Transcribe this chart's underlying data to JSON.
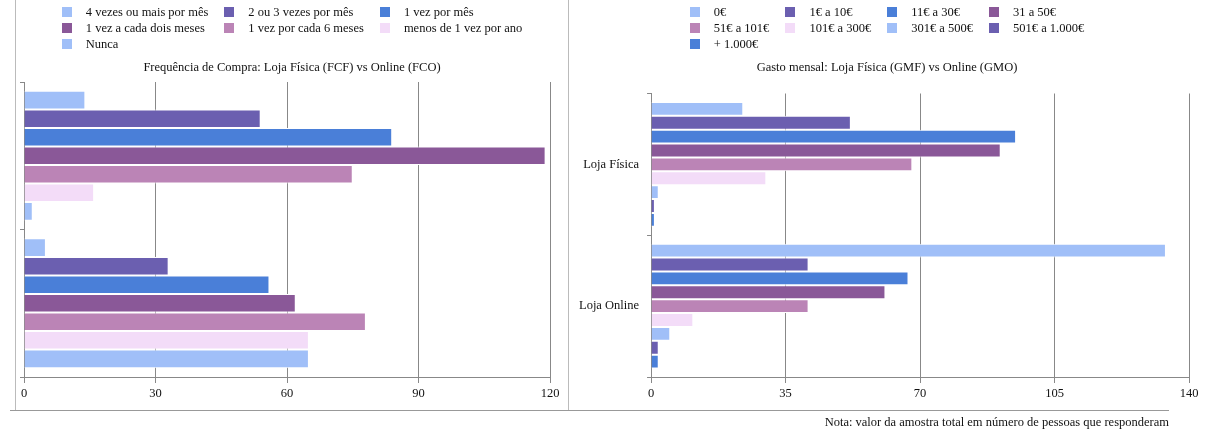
{
  "chart_data": [
    {
      "type": "bar",
      "orientation": "horizontal",
      "title": "Frequência de Compra: Loja Física (FCF) vs Online (FCO)",
      "categories": [
        null,
        null
      ],
      "series": [
        {
          "name": "4 vezes ou mais por mês",
          "color": "#a0bff8",
          "values": [
            14,
            5
          ]
        },
        {
          "name": "2 ou 3 vezes por mês",
          "color": "#6b5fb0",
          "values": [
            54,
            33
          ]
        },
        {
          "name": "1 vez por mês",
          "color": "#4a7fd8",
          "values": [
            84,
            56
          ]
        },
        {
          "name": "1 vez a cada dois meses",
          "color": "#8a5898",
          "values": [
            119,
            62
          ]
        },
        {
          "name": "1 vez por cada 6 meses",
          "color": "#bb84b6",
          "values": [
            75,
            78
          ]
        },
        {
          "name": "menos de 1 vez por ano",
          "color": "#f3dcf8",
          "values": [
            16,
            65
          ]
        },
        {
          "name": "Nunca",
          "color": "#a0bff8",
          "values": [
            2,
            65
          ]
        }
      ],
      "xlim": [
        0,
        120
      ],
      "xticks": [
        0,
        30,
        60,
        90,
        120
      ],
      "grid": "x",
      "legend": "top",
      "tick_labels": "x"
    },
    {
      "type": "bar",
      "orientation": "horizontal",
      "title": "Gasto mensal: Loja Física (GMF) vs Online (GMO)",
      "categories": [
        "Loja Física",
        "Loja Online"
      ],
      "series": [
        {
          "name": "0€",
          "color": "#a0bff8",
          "values": [
            24,
            134
          ]
        },
        {
          "name": "1€ a 10€",
          "color": "#6b5fb0",
          "values": [
            52,
            41
          ]
        },
        {
          "name": "11€ a 30€",
          "color": "#4a7fd8",
          "values": [
            95,
            67
          ]
        },
        {
          "name": "31 a 50€",
          "color": "#8a5898",
          "values": [
            91,
            61
          ]
        },
        {
          "name": "51€ a 101€",
          "color": "#bb84b6",
          "values": [
            68,
            41
          ]
        },
        {
          "name": "101€ a 300€",
          "color": "#f3dcf8",
          "values": [
            30,
            11
          ]
        },
        {
          "name": "301€ a 500€",
          "color": "#a0bff8",
          "values": [
            2,
            5
          ]
        },
        {
          "name": "501€ a 1.000€",
          "color": "#6b5fb0",
          "values": [
            1,
            2
          ]
        },
        {
          "name": "+ 1.000€",
          "color": "#4a7fd8",
          "values": [
            1,
            2
          ]
        }
      ],
      "xlim": [
        0,
        140
      ],
      "xticks": [
        0,
        35,
        70,
        105,
        140
      ],
      "grid": "x",
      "legend": "top",
      "annotations": [
        "Nota: valor da amostra total em número de pessoas que responderam"
      ]
    }
  ]
}
